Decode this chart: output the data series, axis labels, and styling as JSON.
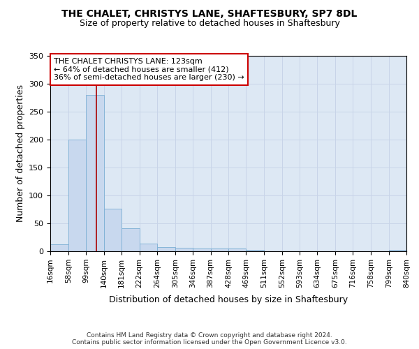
{
  "title1": "THE CHALET, CHRISTYS LANE, SHAFTESBURY, SP7 8DL",
  "title2": "Size of property relative to detached houses in Shaftesbury",
  "xlabel": "Distribution of detached houses by size in Shaftesbury",
  "ylabel": "Number of detached properties",
  "bar_color": "#c8d8ee",
  "bar_edge_color": "#7bafd4",
  "grid_color": "#c8d4e8",
  "background_color": "#dde8f4",
  "vline_x": 123,
  "vline_color": "#aa0000",
  "bin_edges": [
    16,
    58,
    99,
    140,
    181,
    222,
    264,
    305,
    346,
    387,
    428,
    469,
    511,
    552,
    593,
    634,
    675,
    716,
    758,
    799,
    840
  ],
  "bar_heights": [
    13,
    200,
    280,
    76,
    41,
    14,
    8,
    6,
    5,
    5,
    5,
    3,
    0,
    0,
    0,
    0,
    0,
    0,
    0,
    3
  ],
  "ylim": [
    0,
    350
  ],
  "yticks": [
    0,
    50,
    100,
    150,
    200,
    250,
    300,
    350
  ],
  "annotation_title": "THE CHALET CHRISTYS LANE: 123sqm",
  "annotation_line2": "← 64% of detached houses are smaller (412)",
  "annotation_line3": "36% of semi-detached houses are larger (230) →",
  "annotation_box_color": "#ffffff",
  "annotation_border_color": "#cc0000",
  "footer_line1": "Contains HM Land Registry data © Crown copyright and database right 2024.",
  "footer_line2": "Contains public sector information licensed under the Open Government Licence v3.0.",
  "tick_labels": [
    "16sqm",
    "58sqm",
    "99sqm",
    "140sqm",
    "181sqm",
    "222sqm",
    "264sqm",
    "305sqm",
    "346sqm",
    "387sqm",
    "428sqm",
    "469sqm",
    "511sqm",
    "552sqm",
    "593sqm",
    "634sqm",
    "675sqm",
    "716sqm",
    "758sqm",
    "799sqm",
    "840sqm"
  ]
}
